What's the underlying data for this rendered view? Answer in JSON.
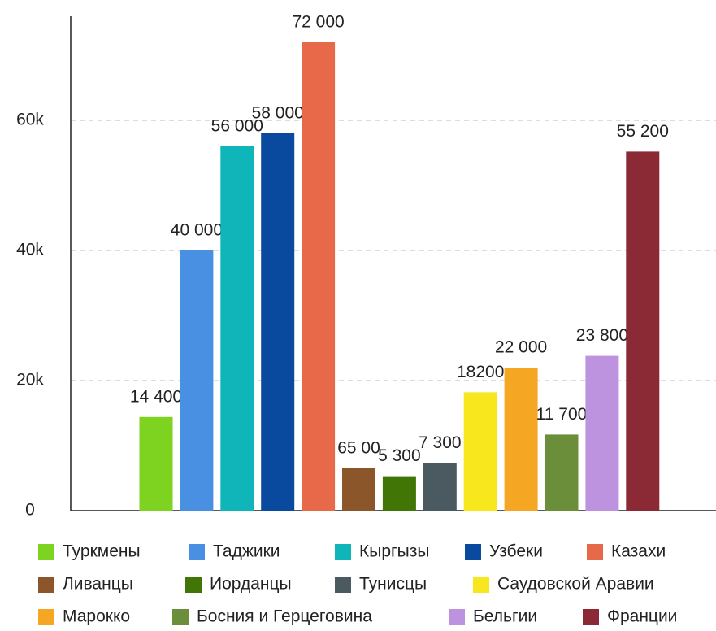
{
  "chart_data": {
    "type": "bar",
    "categories": [
      "Туркмены",
      "Таджики",
      "Кыргызы",
      "Узбеки",
      "Казахи",
      "Ливанцы",
      "Иорданцы",
      "Тунисцы",
      "Саудовской Аравии",
      "Марокко",
      "Босния и Герцеговина",
      "Бельгии",
      "Франции"
    ],
    "values": [
      14400,
      40000,
      56000,
      58000,
      72000,
      6500,
      5300,
      7300,
      18200,
      22000,
      11700,
      23800,
      55200
    ],
    "value_labels": [
      "14 400",
      "40 000",
      "56 000",
      "58 000",
      "72 000",
      "65 00",
      "5 300",
      "7 300",
      "18200",
      "22 000",
      "11 700",
      "23 800",
      "55 200"
    ],
    "colors": [
      "#7ed321",
      "#4a90e2",
      "#0fb5b8",
      "#0a4a9e",
      "#e8694a",
      "#8b572a",
      "#417505",
      "#4a5a60",
      "#f8e71c",
      "#f5a623",
      "#6b8e3a",
      "#bd93e0",
      "#8b2a35"
    ],
    "ylim": [
      0,
      76000
    ],
    "yticks": [
      0,
      {
        "value": 20000,
        "label": "20k"
      },
      {
        "value": 40000,
        "label": "40k"
      },
      {
        "value": 60000,
        "label": "60k"
      }
    ],
    "grid": true
  }
}
